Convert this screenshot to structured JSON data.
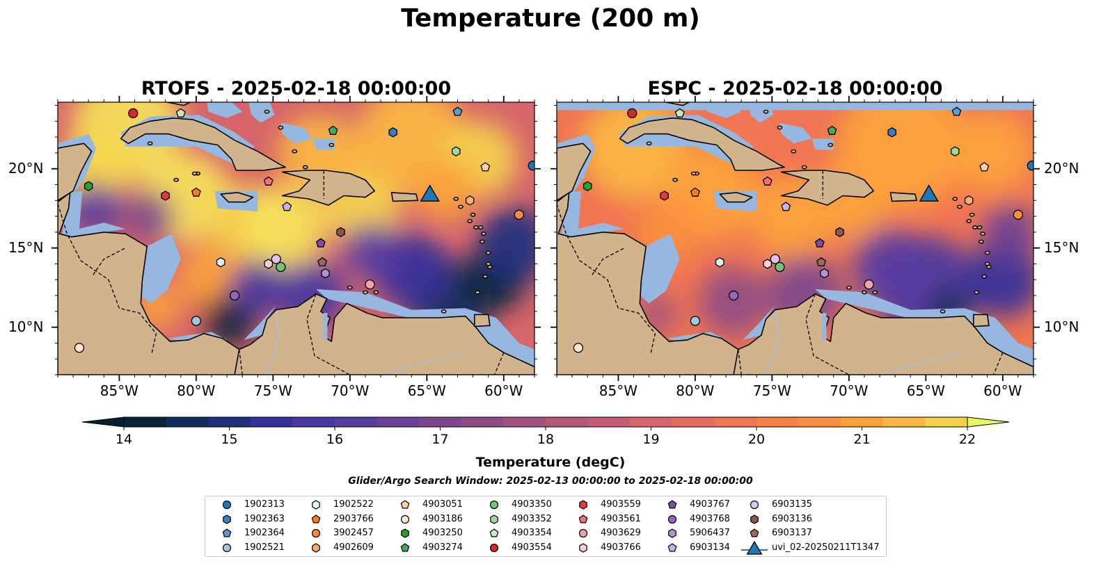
{
  "suptitle": "Temperature (200 m)",
  "panels": [
    {
      "title": "RTOFS - 2025-02-18 00:00:00",
      "variant": "rtofs"
    },
    {
      "title": "ESPC - 2025-02-18 00:00:00",
      "variant": "espc"
    }
  ],
  "map_extent": {
    "lon": [
      -89,
      -58
    ],
    "lat": [
      7,
      24.2
    ]
  },
  "x_ticks": [
    {
      "lon": -85,
      "label": "85°W"
    },
    {
      "lon": -80,
      "label": "80°W"
    },
    {
      "lon": -75,
      "label": "75°W"
    },
    {
      "lon": -70,
      "label": "70°W"
    },
    {
      "lon": -65,
      "label": "65°W"
    },
    {
      "lon": -60,
      "label": "60°W"
    }
  ],
  "y_ticks": [
    {
      "lat": 20,
      "label": "20°N"
    },
    {
      "lat": 15,
      "label": "15°N"
    },
    {
      "lat": 10,
      "label": "10°N"
    }
  ],
  "colorbar": {
    "label": "Temperature (degC)",
    "min": 14,
    "max": 22,
    "step": 0.5,
    "ticks": [
      "14",
      "15",
      "16",
      "17",
      "18",
      "19",
      "20",
      "21",
      "22"
    ],
    "under_color": "#06202f",
    "over_color": "#e8fa5b",
    "colors": [
      "#07243a",
      "#0f2c5c",
      "#1f2f7e",
      "#33319b",
      "#47379f",
      "#593c9f",
      "#6a4196",
      "#7c468d",
      "#8e4c86",
      "#a1527f",
      "#b3587a",
      "#c55e72",
      "#d7656a",
      "#e56c60",
      "#f07553",
      "#f98145",
      "#fc8f3d",
      "#fca23c",
      "#fab843",
      "#f5d24c"
    ]
  },
  "search_window": "Glider/Argo Search Window: 2025-02-13 00:00:00 to 2025-02-18 00:00:00",
  "colors": {
    "land": "#d2b48c",
    "shallow": "#96b8e0",
    "deep_dark": "#06202f"
  },
  "floats": [
    {
      "id": "1902313",
      "marker": "circle",
      "color": "#1f77b4",
      "lon": -58.1,
      "lat": 20.2
    },
    {
      "id": "1902363",
      "marker": "hexagon",
      "color": "#3a7ebf",
      "lon": -67.2,
      "lat": 22.3
    },
    {
      "id": "1902364",
      "marker": "pentagon",
      "color": "#5a9bd5",
      "lon": -63.0,
      "lat": 23.6
    },
    {
      "id": "1902521",
      "marker": "circle",
      "color": "#9ecae1",
      "lon": -80.0,
      "lat": 10.4
    },
    {
      "id": "1902522",
      "marker": "hexagon",
      "color": "#dff3fb",
      "lon": -78.4,
      "lat": 14.1
    },
    {
      "id": "2903766",
      "marker": "pentagon",
      "color": "#ff7f0e",
      "lon": -80.0,
      "lat": 18.5
    },
    {
      "id": "3902457",
      "marker": "circle",
      "color": "#fd8d3c",
      "lon": -59.0,
      "lat": 17.1
    },
    {
      "id": "4902609",
      "marker": "hexagon",
      "color": "#fdae6b",
      "lon": -62.2,
      "lat": 18.0
    },
    {
      "id": "4903051",
      "marker": "pentagon",
      "color": "#fdd0a2",
      "lon": -61.2,
      "lat": 20.1
    },
    {
      "id": "4903186",
      "marker": "circle",
      "color": "#fee6ce",
      "lon": -87.6,
      "lat": 8.7
    },
    {
      "id": "4903250",
      "marker": "hexagon",
      "color": "#2ca02c",
      "lon": -87.0,
      "lat": 18.9
    },
    {
      "id": "4903274",
      "marker": "pentagon",
      "color": "#41ab5d",
      "lon": -71.1,
      "lat": 22.4
    },
    {
      "id": "4903350",
      "marker": "circle",
      "color": "#74c476",
      "lon": -74.5,
      "lat": 13.8
    },
    {
      "id": "4903352",
      "marker": "hexagon",
      "color": "#a1d99b",
      "lon": -63.1,
      "lat": 21.1
    },
    {
      "id": "4903354",
      "marker": "pentagon",
      "color": "#c7e9c0",
      "lon": -81.0,
      "lat": 23.5
    },
    {
      "id": "4903554",
      "marker": "circle",
      "color": "#d62728",
      "lon": -84.1,
      "lat": 23.5
    },
    {
      "id": "4903559",
      "marker": "hexagon",
      "color": "#e03a3e",
      "lon": -82.0,
      "lat": 18.3
    },
    {
      "id": "4903561",
      "marker": "pentagon",
      "color": "#f0717a",
      "lon": -75.3,
      "lat": 19.2
    },
    {
      "id": "4903629",
      "marker": "circle",
      "color": "#f4a3a8",
      "lon": -68.7,
      "lat": 12.7
    },
    {
      "id": "4903766",
      "marker": "hexagon",
      "color": "#fbd0d2",
      "lon": -75.3,
      "lat": 14.0
    },
    {
      "id": "4903767",
      "marker": "pentagon",
      "color": "#7b4fa6",
      "lon": -71.9,
      "lat": 15.3
    },
    {
      "id": "4903768",
      "marker": "circle",
      "color": "#9467bd",
      "lon": -77.5,
      "lat": 12.0
    },
    {
      "id": "5906437",
      "marker": "hexagon",
      "color": "#b294d6",
      "lon": -71.6,
      "lat": 13.4
    },
    {
      "id": "6903134",
      "marker": "pentagon",
      "color": "#cab2e6",
      "lon": -74.1,
      "lat": 17.6
    },
    {
      "id": "6903135",
      "marker": "circle",
      "color": "#dcc4f0",
      "lon": -74.8,
      "lat": 14.3
    },
    {
      "id": "6903136",
      "marker": "hexagon",
      "color": "#8c564b",
      "lon": -70.6,
      "lat": 16.0
    },
    {
      "id": "6903137",
      "marker": "pentagon",
      "color": "#a0685c",
      "lon": -71.8,
      "lat": 14.1
    }
  ],
  "glider": {
    "id": "uvi_02-20250211T1347",
    "marker": "triangle",
    "color": "#1f77b4",
    "lon": -64.8,
    "lat": 18.2
  }
}
